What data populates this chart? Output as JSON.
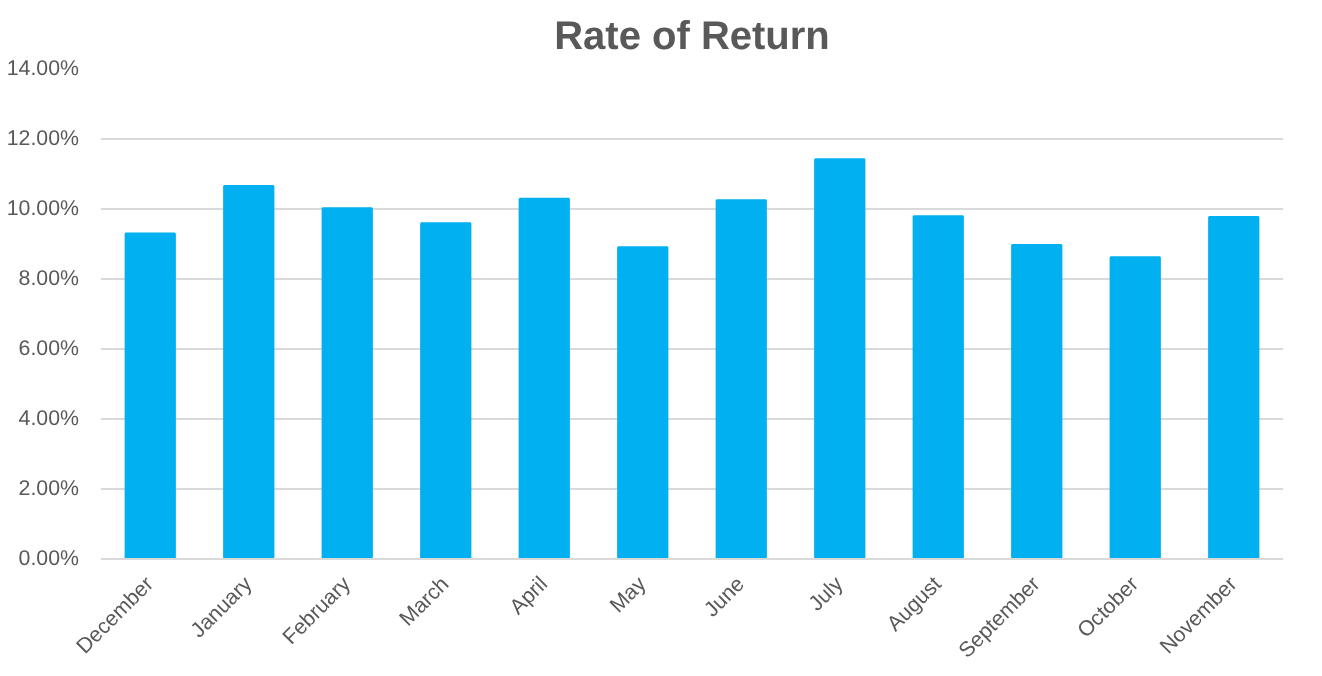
{
  "chart_data": {
    "type": "bar",
    "title": "Rate of Return",
    "categories": [
      "December",
      "January",
      "February",
      "March",
      "April",
      "May",
      "June",
      "July",
      "August",
      "September",
      "October",
      "November"
    ],
    "values": [
      9.3,
      10.66,
      10.02,
      9.59,
      10.29,
      8.91,
      10.25,
      11.42,
      9.79,
      8.97,
      8.62,
      9.77
    ],
    "color": "#00b0f0",
    "ylim": [
      0,
      14
    ],
    "yticks": [
      {
        "value": 0,
        "label": "0.00%"
      },
      {
        "value": 2,
        "label": "2.00%"
      },
      {
        "value": 4,
        "label": "4.00%"
      },
      {
        "value": 6,
        "label": "6.00%"
      },
      {
        "value": 8,
        "label": "8.00%"
      },
      {
        "value": 10,
        "label": "10.00%"
      },
      {
        "value": 12,
        "label": "12.00%"
      },
      {
        "value": 14,
        "label": "14.00%"
      }
    ],
    "grid": "y"
  }
}
